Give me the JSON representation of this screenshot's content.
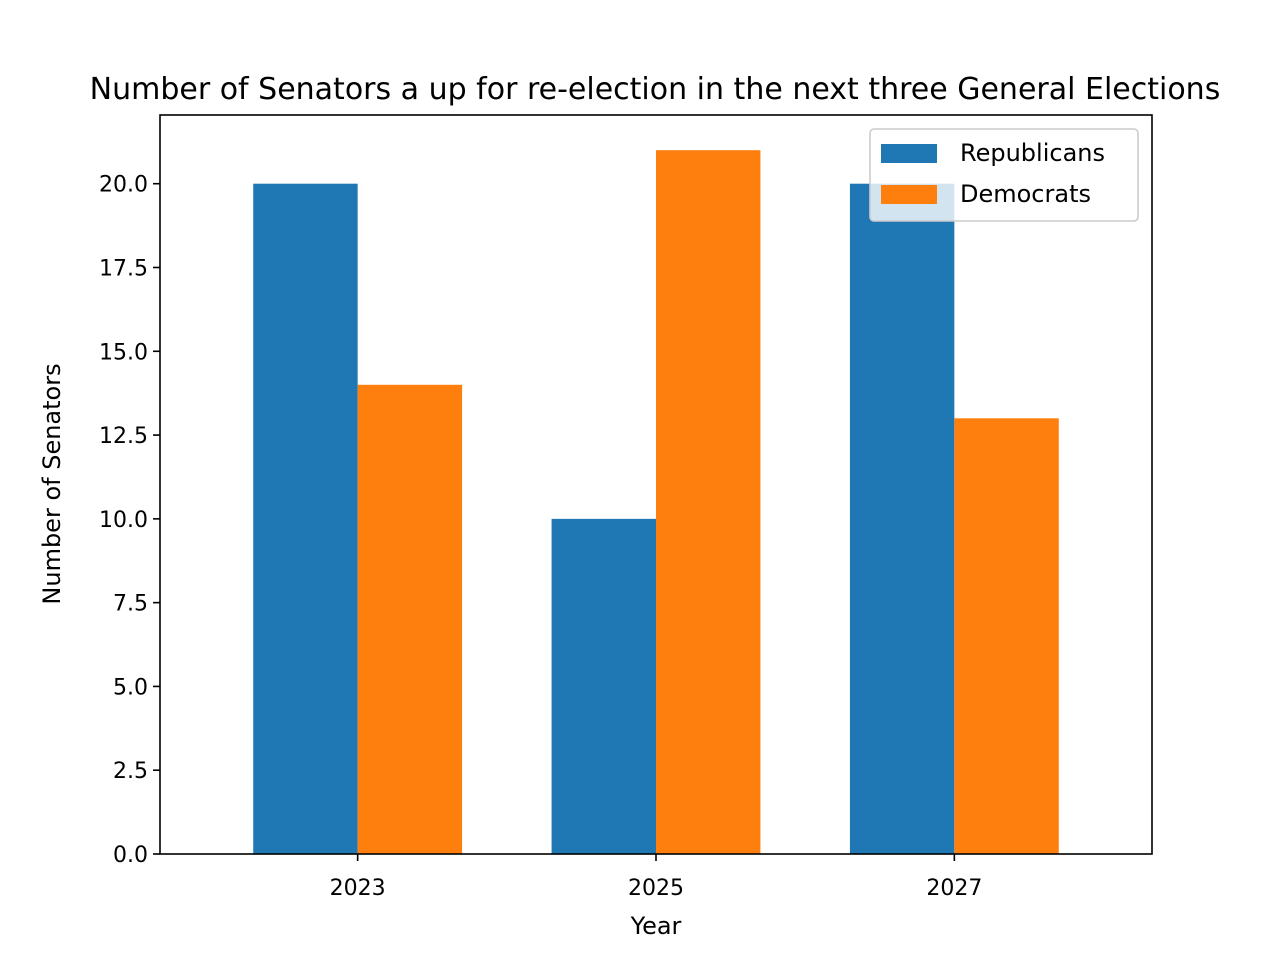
{
  "chart_data": {
    "type": "bar",
    "title": "Number of Senators a up for re-election in the next three General Elections",
    "xlabel": "Year",
    "ylabel": "Number of Senators",
    "categories": [
      "2023",
      "2025",
      "2027"
    ],
    "series": [
      {
        "name": "Republicans",
        "color": "#1f77b4",
        "values": [
          20,
          10,
          20
        ]
      },
      {
        "name": "Democrats",
        "color": "#ff7f0e",
        "values": [
          14,
          21,
          13
        ]
      }
    ],
    "ylim": [
      0,
      22.05
    ],
    "yticks": [
      "0.0",
      "2.5",
      "5.0",
      "7.5",
      "10.0",
      "12.5",
      "15.0",
      "17.5",
      "20.0"
    ],
    "grid": false,
    "legend_position": "top-right"
  }
}
